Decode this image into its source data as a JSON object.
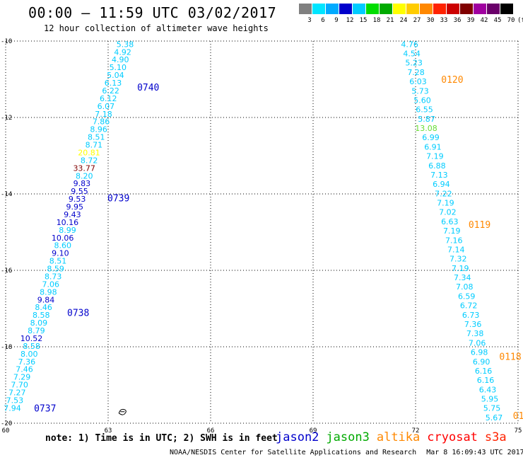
{
  "header": {
    "title": "00:00 – 11:59 UTC 03/02/2017",
    "subtitle": "12 hour collection of altimeter wave heights"
  },
  "scale": {
    "colors": [
      "#808080",
      "#00e5ff",
      "#00aaff",
      "#0000cc",
      "#00ccff",
      "#00dd00",
      "#00aa00",
      "#ffff00",
      "#ffcc00",
      "#ff8800",
      "#ff2200",
      "#cc0000",
      "#800000",
      "#a000a0",
      "#6a006a",
      "#000000"
    ],
    "labels": [
      "3",
      "6",
      "9",
      "12",
      "15",
      "18",
      "21",
      "24",
      "27",
      "30",
      "33",
      "36",
      "39",
      "42",
      "45",
      "70",
      "(ft)"
    ]
  },
  "map": {
    "lon_ticks": [
      "60",
      "63",
      "66",
      "69",
      "72",
      "75"
    ],
    "lat_ticks": [
      "-10",
      "-12",
      "-14",
      "-16",
      "-18",
      "-20"
    ],
    "lon_range": [
      60,
      75
    ],
    "lat_range": [
      -20,
      -10
    ]
  },
  "time_labels": [
    {
      "text": "0740",
      "lon": 63.85,
      "lat": -11.2,
      "color": "#0000cc"
    },
    {
      "text": "0739",
      "lon": 62.98,
      "lat": -14.1,
      "color": "#0000cc"
    },
    {
      "text": "0738",
      "lon": 61.8,
      "lat": -17.1,
      "color": "#0000cc"
    },
    {
      "text": "0737",
      "lon": 60.83,
      "lat": -19.6,
      "color": "#0000cc"
    },
    {
      "text": "0120",
      "lon": 72.75,
      "lat": -11.0,
      "color": "#ff8800"
    },
    {
      "text": "0119",
      "lon": 73.55,
      "lat": -14.8,
      "color": "#ff8800"
    },
    {
      "text": "0118",
      "lon": 74.45,
      "lat": -18.25,
      "color": "#ff8800"
    },
    {
      "text": "01",
      "lon": 74.85,
      "lat": -19.8,
      "color": "#ff8800"
    }
  ],
  "tracks": [
    {
      "name": "0737-0740",
      "start_lon": 63.75,
      "start_lat": -10.08,
      "end_lon": 60.45,
      "end_lat": -19.6,
      "values": [
        "5.38",
        "4.92",
        "4.90",
        "5.10",
        "5.04",
        "6.13",
        "6.22",
        "6.12",
        "6.07",
        "7.18",
        "7.86",
        "8.96",
        "8.51",
        "8.71",
        "20.81",
        "8.72",
        "33.77",
        "8.20",
        "9.83",
        "9.55",
        "9.53",
        "9.95",
        "9.43",
        "10.16",
        "8.99",
        "10.06",
        "8.60",
        "9.10",
        "8.51",
        "8.59",
        "8.73",
        "7.06",
        "8.98",
        "9.84",
        "8.46",
        "8.58",
        "8.09",
        "8.79",
        "10.52",
        "8.58",
        "8.00",
        "7.36",
        "7.46",
        "7.29",
        "7.70",
        "7.27",
        "7.53",
        "7.94"
      ],
      "colors": [
        "#00ccff",
        "#00ccff",
        "#00ccff",
        "#00ccff",
        "#00ccff",
        "#00ccff",
        "#00ccff",
        "#00ccff",
        "#00ccff",
        "#00ccff",
        "#00ccff",
        "#00ccff",
        "#00ccff",
        "#00ccff",
        "#ffff00",
        "#00ccff",
        "#800000",
        "#00ccff",
        "#0000cc",
        "#0000cc",
        "#0000cc",
        "#0000cc",
        "#0000cc",
        "#0000cc",
        "#00ccff",
        "#0000cc",
        "#00ccff",
        "#0000cc",
        "#00ccff",
        "#00ccff",
        "#00ccff",
        "#00ccff",
        "#00ccff",
        "#0000cc",
        "#00ccff",
        "#00ccff",
        "#00ccff",
        "#00ccff",
        "#0000cc",
        "#00ccff",
        "#00ccff",
        "#00ccff",
        "#00ccff",
        "#00ccff",
        "#00ccff",
        "#00ccff",
        "#00ccff",
        "#00ccff"
      ]
    },
    {
      "name": "0118-0120",
      "start_lon": 72.08,
      "start_lat": -10.08,
      "end_lon": 74.55,
      "end_lat": -19.85,
      "values": [
        "4.76",
        "4.54",
        "5.23",
        "7.28",
        "6.03",
        "5.73",
        "5.60",
        "6.55",
        "5.87",
        "13.08",
        "6.99",
        "6.91",
        "7.19",
        "6.88",
        "7.13",
        "6.94",
        "7.22",
        "7.19",
        "7.02",
        "6.63",
        "7.19",
        "7.16",
        "7.14",
        "7.32",
        "7.19",
        "7.34",
        "7.08",
        "6.59",
        "6.72",
        "6.73",
        "7.36",
        "7.38",
        "7.06",
        "6.98",
        "6.90",
        "6.16",
        "6.16",
        "6.43",
        "5.95",
        "5.75",
        "5.67"
      ],
      "colors": [
        "#00ccff",
        "#00ccff",
        "#00ccff",
        "#00ccff",
        "#00ccff",
        "#00ccff",
        "#00ccff",
        "#00ccff",
        "#00ccff",
        "#66dd33",
        "#00ccff",
        "#00ccff",
        "#00ccff",
        "#00ccff",
        "#00ccff",
        "#00ccff",
        "#00ccff",
        "#00ccff",
        "#00ccff",
        "#00ccff",
        "#00ccff",
        "#00ccff",
        "#00ccff",
        "#00ccff",
        "#00ccff",
        "#00ccff",
        "#00ccff",
        "#00ccff",
        "#00ccff",
        "#00ccff",
        "#00ccff",
        "#00ccff",
        "#00ccff",
        "#00ccff",
        "#00ccff",
        "#00ccff",
        "#00ccff",
        "#00ccff",
        "#00ccff",
        "#00ccff",
        "#00ccff"
      ]
    }
  ],
  "island": {
    "lon": 63.4,
    "lat": -19.7
  },
  "footer": {
    "note": "note: 1) Time is in UTC; 2) SWH is in feet",
    "legend": [
      {
        "label": "jason2",
        "color": "#0000cc"
      },
      {
        "label": "jason3",
        "color": "#00aa00"
      },
      {
        "label": "altika",
        "color": "#ff8800"
      },
      {
        "label": "cryosat",
        "color": "#ff0000"
      },
      {
        "label": "s3a",
        "color": "#ff2200"
      }
    ],
    "credit": "NOAA/NESDIS Center for Satellite Applications and Research",
    "timestamp": "Mar  8 16:09:43 UTC 2017"
  }
}
